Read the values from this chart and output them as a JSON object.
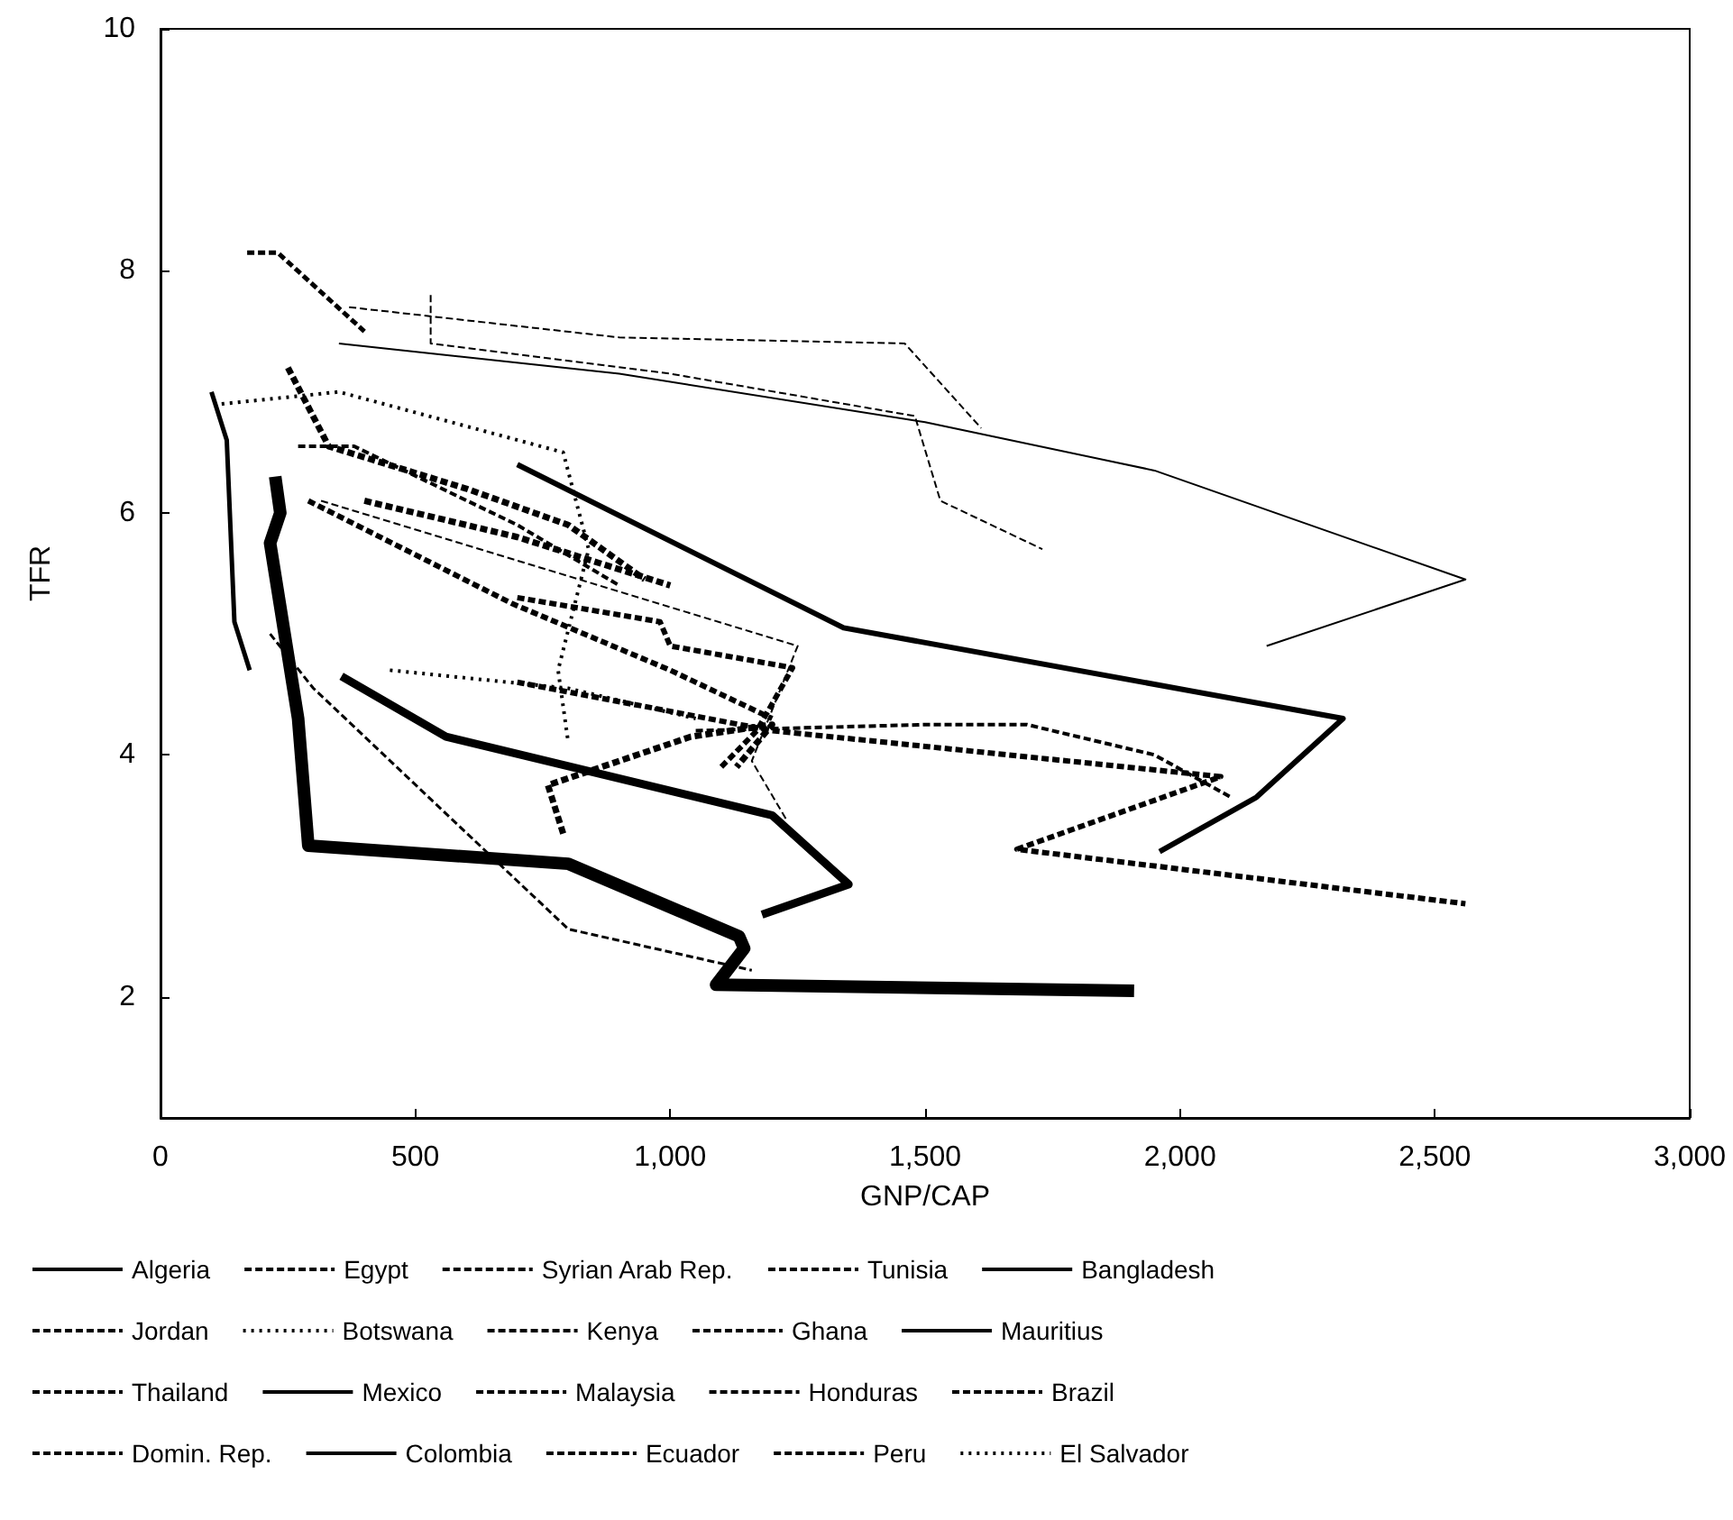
{
  "chart_data": {
    "type": "line",
    "xlabel": "GNP/CAP",
    "ylabel": "TFR",
    "xlim": [
      0,
      3000
    ],
    "ylim": [
      1,
      10
    ],
    "xticks": [
      0,
      500,
      {
        "value": 1000,
        "label": "1,000"
      },
      {
        "value": 1500,
        "label": "1,500"
      },
      {
        "value": 2000,
        "label": "2,000"
      },
      {
        "value": 2500,
        "label": "2,500"
      },
      {
        "value": 3000,
        "label": "3,000"
      }
    ],
    "yticks": [
      2,
      4,
      6,
      8,
      10
    ],
    "grid": false,
    "legend": "bottom",
    "marker": "none",
    "series": [
      {
        "name": "Algeria",
        "color": "#000000",
        "line_style": "solid",
        "x": [
          350,
          900,
          1500,
          1950,
          2560,
          2170
        ],
        "values": [
          7.4,
          7.15,
          6.75,
          6.35,
          5.45,
          4.9
        ]
      },
      {
        "name": "Egypt",
        "color": "#000000",
        "line_style": "dashed",
        "x": [
          530,
          530,
          1000,
          1480,
          1530,
          1730
        ],
        "values": [
          7.8,
          7.4,
          7.15,
          6.8,
          6.1,
          5.7
        ]
      },
      {
        "name": "Syrian Arab Rep.",
        "color": "#000000",
        "line_style": "dashed",
        "x": [
          370,
          900,
          1460,
          1610
        ],
        "values": [
          7.7,
          7.45,
          7.4,
          6.7
        ]
      },
      {
        "name": "Tunisia",
        "color": "#000000",
        "line_style": "dashed",
        "x": [
          315,
          1250,
          1160,
          1230
        ],
        "values": [
          6.1,
          4.9,
          3.95,
          3.45
        ]
      },
      {
        "name": "Bangladesh",
        "color": "#000000",
        "line_style": "solid",
        "x": [
          100,
          130,
          145,
          175
        ],
        "values": [
          7.0,
          6.6,
          5.1,
          4.7
        ]
      },
      {
        "name": "Jordan",
        "color": "#000000",
        "line_style": "dashed",
        "x": [
          1050,
          1500,
          1700,
          1950,
          2100
        ],
        "values": [
          4.2,
          4.25,
          4.25,
          4.0,
          3.65
        ]
      },
      {
        "name": "Botswana",
        "color": "#000000",
        "line_style": "dotted",
        "x": [
          120,
          350,
          790,
          840,
          780,
          800
        ],
        "values": [
          6.9,
          7.0,
          6.5,
          5.7,
          4.7,
          4.1
        ]
      },
      {
        "name": "Kenya",
        "color": "#000000",
        "line_style": "dashed",
        "x": [
          170,
          230,
          400
        ],
        "values": [
          8.15,
          8.15,
          7.5
        ]
      },
      {
        "name": "Ghana",
        "color": "#000000",
        "line_style": "dashed",
        "x": [
          270,
          380,
          700,
          900
        ],
        "values": [
          6.55,
          6.55,
          5.9,
          5.4
        ]
      },
      {
        "name": "Mauritius",
        "color": "#000000",
        "line_style": "solid",
        "x": [
          225,
          235,
          215,
          270,
          290,
          800,
          1135,
          1145,
          1090,
          1910
        ],
        "values": [
          6.3,
          6.0,
          5.75,
          4.3,
          3.25,
          3.1,
          2.5,
          2.4,
          2.1,
          2.05
        ]
      },
      {
        "name": "Thailand",
        "color": "#000000",
        "line_style": "dashed",
        "x": [
          215,
          300,
          800,
          1160
        ],
        "values": [
          5.0,
          4.55,
          2.56,
          2.22
        ]
      },
      {
        "name": "Mexico",
        "color": "#000000",
        "line_style": "solid",
        "x": [
          700,
          1340,
          2320,
          2150,
          1960
        ],
        "values": [
          6.4,
          5.05,
          4.3,
          3.65,
          3.2
        ]
      },
      {
        "name": "Malaysia",
        "color": "#000000",
        "line_style": "dashed",
        "x": [
          700,
          980,
          1000,
          1240,
          1170,
          1100
        ],
        "values": [
          5.3,
          5.1,
          4.9,
          4.72,
          4.2,
          3.9
        ]
      },
      {
        "name": "Honduras",
        "color": "#000000",
        "line_style": "dashed",
        "x": [
          250,
          330,
          600,
          800,
          950
        ],
        "values": [
          7.2,
          6.55,
          6.2,
          5.9,
          5.45
        ]
      },
      {
        "name": "Brazil",
        "color": "#000000",
        "line_style": "dashed",
        "x": [
          700,
          1200,
          2080,
          1680,
          2560
        ],
        "values": [
          4.6,
          4.2,
          3.82,
          3.22,
          2.77
        ]
      },
      {
        "name": "Domin. Rep.",
        "color": "#000000",
        "line_style": "dashed",
        "x": [
          290,
          690,
          1000,
          1200
        ],
        "values": [
          6.1,
          5.25,
          4.7,
          4.3
        ]
      },
      {
        "name": "Colombia",
        "color": "#000000",
        "line_style": "solid",
        "x": [
          355,
          560,
          1200,
          1350,
          1180
        ],
        "values": [
          4.65,
          4.15,
          3.5,
          2.93,
          2.68
        ]
      },
      {
        "name": "Ecuador",
        "color": "#000000",
        "line_style": "dashed",
        "x": [
          790,
          760,
          1040,
          1200,
          1130
        ],
        "values": [
          3.35,
          3.75,
          4.15,
          4.25,
          3.9
        ]
      },
      {
        "name": "Peru",
        "color": "#000000",
        "line_style": "dashed",
        "x": [
          400,
          700,
          1000
        ],
        "values": [
          6.1,
          5.8,
          5.4
        ]
      },
      {
        "name": "El Salvador",
        "color": "#000000",
        "line_style": "dotted",
        "x": [
          450,
          800,
          1050
        ],
        "values": [
          4.7,
          4.55,
          4.3
        ]
      }
    ]
  }
}
